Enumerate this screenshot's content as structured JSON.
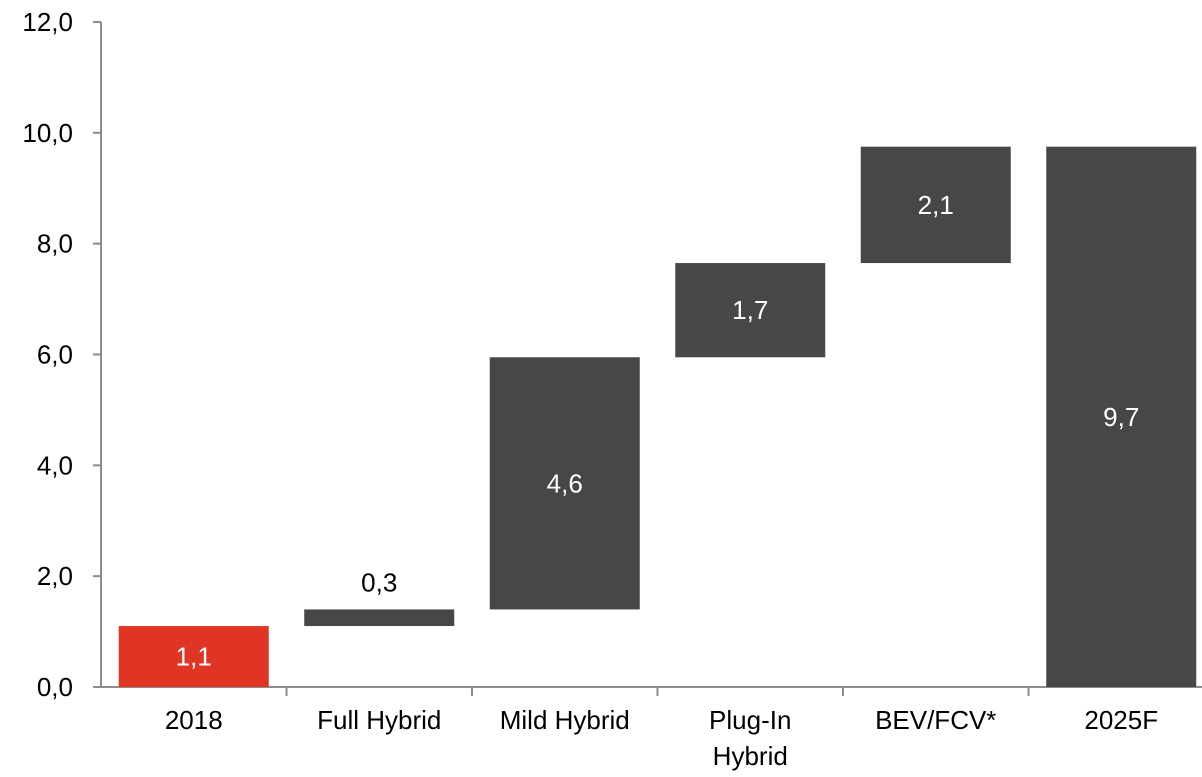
{
  "chart_data": {
    "type": "bar",
    "subtype": "waterfall",
    "categories": [
      "2018",
      "Full Hybrid",
      "Mild Hybrid",
      "Plug-In Hybrid",
      "BEV/FCV*",
      "2025F"
    ],
    "category_label_lines": [
      [
        "2018"
      ],
      [
        "Full Hybrid"
      ],
      [
        "Mild Hybrid"
      ],
      [
        "Plug-In",
        "Hybrid"
      ],
      [
        "BEV/FCV*"
      ],
      [
        "2025F"
      ]
    ],
    "values": [
      1.1,
      0.3,
      4.6,
      1.7,
      2.1,
      9.7
    ],
    "bar_ranges": [
      [
        0,
        1.1
      ],
      [
        1.1,
        1.4
      ],
      [
        1.4,
        5.95
      ],
      [
        5.95,
        7.65
      ],
      [
        7.65,
        9.75
      ],
      [
        0,
        9.75
      ]
    ],
    "data_labels": [
      "1,1",
      "0,3",
      "4,6",
      "1,7",
      "2,1",
      "9,7"
    ],
    "bar_kinds": [
      "total",
      "increment",
      "increment",
      "increment",
      "increment",
      "total"
    ],
    "ylim": [
      0,
      12
    ],
    "yticks": [
      0,
      2,
      4,
      6,
      8,
      10,
      12
    ],
    "ytick_labels": [
      "0,0",
      "2,0",
      "4,0",
      "6,0",
      "8,0",
      "10,0",
      "12,0"
    ],
    "grid": false,
    "legend": "none",
    "title": "",
    "xlabel": "",
    "ylabel": ""
  },
  "colors": {
    "start_bar": "#E03424",
    "bar": "#474747",
    "axis": "#8C8C8C",
    "label_inside": "#FFFFFF",
    "label_outside": "#000000",
    "tick_text": "#000000"
  }
}
